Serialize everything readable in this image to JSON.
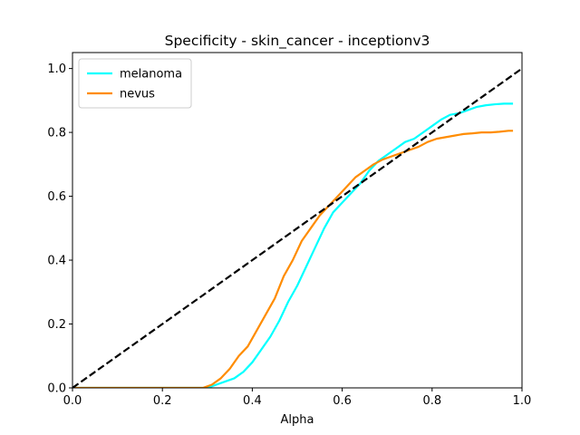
{
  "chart_data": {
    "type": "line",
    "title": "Specificity - skin_cancer - inceptionv3",
    "xlabel": "Alpha",
    "ylabel": "",
    "xlim": [
      0.0,
      1.0
    ],
    "ylim": [
      0.0,
      1.05
    ],
    "xticks": [
      "0.0",
      "0.2",
      "0.4",
      "0.6",
      "0.8",
      "1.0"
    ],
    "yticks": [
      "0.0",
      "0.2",
      "0.4",
      "0.6",
      "0.8",
      "1.0"
    ],
    "grid": false,
    "legend_position": "top-left",
    "series": [
      {
        "name": "melanoma",
        "color": "#00ffff",
        "x": [
          0.0,
          0.1,
          0.2,
          0.3,
          0.32,
          0.34,
          0.36,
          0.38,
          0.4,
          0.42,
          0.44,
          0.46,
          0.48,
          0.5,
          0.52,
          0.54,
          0.56,
          0.58,
          0.6,
          0.62,
          0.64,
          0.66,
          0.68,
          0.7,
          0.72,
          0.74,
          0.76,
          0.78,
          0.8,
          0.82,
          0.84,
          0.86,
          0.88,
          0.9,
          0.92,
          0.94,
          0.96,
          0.98
        ],
        "values": [
          0.0,
          0.0,
          0.0,
          0.0,
          0.01,
          0.02,
          0.03,
          0.05,
          0.08,
          0.12,
          0.16,
          0.21,
          0.27,
          0.32,
          0.38,
          0.44,
          0.5,
          0.55,
          0.58,
          0.61,
          0.64,
          0.68,
          0.71,
          0.73,
          0.75,
          0.77,
          0.78,
          0.8,
          0.82,
          0.84,
          0.855,
          0.86,
          0.87,
          0.88,
          0.885,
          0.888,
          0.89,
          0.89
        ]
      },
      {
        "name": "nevus",
        "color": "#ff8c00",
        "x": [
          0.0,
          0.1,
          0.2,
          0.29,
          0.31,
          0.33,
          0.35,
          0.37,
          0.39,
          0.41,
          0.43,
          0.45,
          0.47,
          0.49,
          0.51,
          0.53,
          0.55,
          0.57,
          0.59,
          0.61,
          0.63,
          0.65,
          0.67,
          0.69,
          0.71,
          0.73,
          0.75,
          0.77,
          0.79,
          0.81,
          0.83,
          0.85,
          0.87,
          0.89,
          0.91,
          0.93,
          0.95,
          0.97,
          0.98
        ],
        "values": [
          0.0,
          0.0,
          0.0,
          0.0,
          0.01,
          0.03,
          0.06,
          0.1,
          0.13,
          0.18,
          0.23,
          0.28,
          0.35,
          0.4,
          0.46,
          0.5,
          0.54,
          0.57,
          0.6,
          0.63,
          0.66,
          0.68,
          0.7,
          0.715,
          0.725,
          0.735,
          0.745,
          0.755,
          0.77,
          0.78,
          0.785,
          0.79,
          0.795,
          0.797,
          0.8,
          0.8,
          0.802,
          0.805,
          0.805
        ]
      },
      {
        "name": "",
        "color": "#000000",
        "style": "dashed",
        "x": [
          0.0,
          1.0
        ],
        "values": [
          0.0,
          1.0
        ]
      }
    ]
  }
}
